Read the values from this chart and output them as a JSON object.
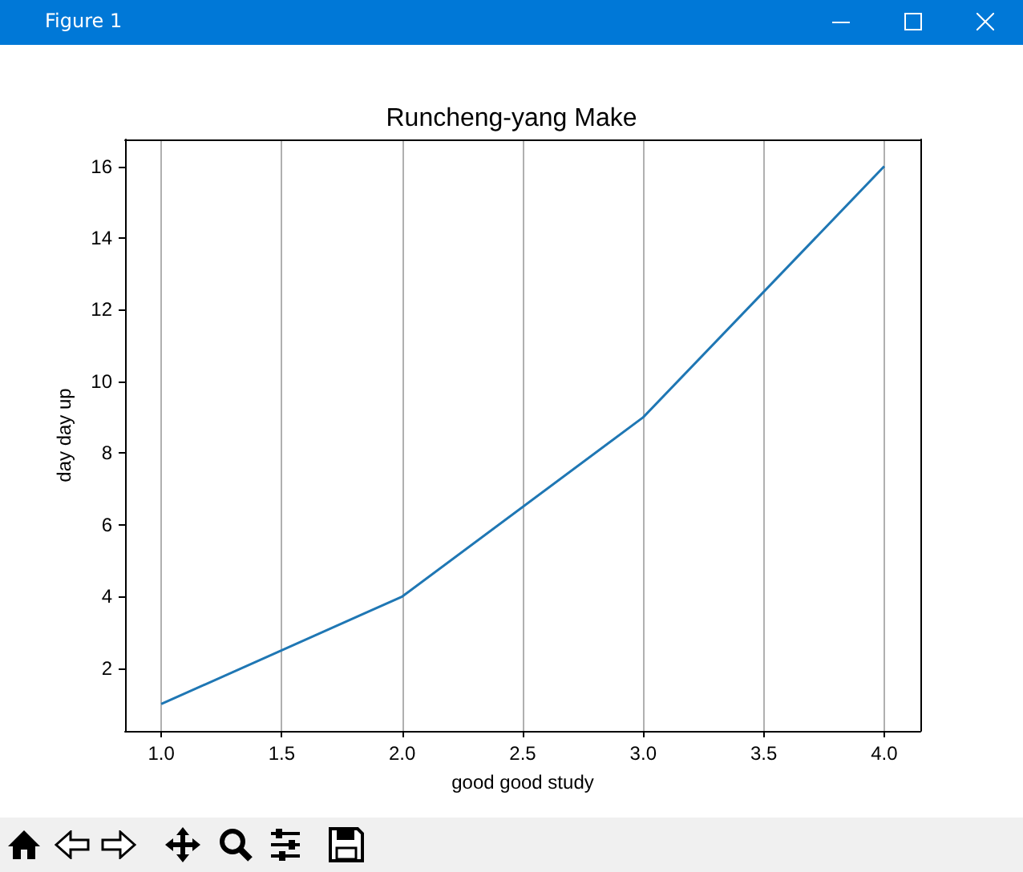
{
  "chart_data": {
    "type": "line",
    "title": "Runcheng-yang Make",
    "xlabel": "good good study",
    "ylabel": "day day up",
    "annotations": [
      "Figure 1"
    ],
    "x": [
      1,
      2,
      3,
      4
    ],
    "series": [
      {
        "color": "#1f77b4",
        "values": [
          1,
          4,
          9,
          16
        ]
      }
    ],
    "xlim": [
      0.85,
      4.15
    ],
    "xticks": [
      {
        "value": 1,
        "label": "1.0"
      },
      {
        "value": 1.5,
        "label": "1.5"
      },
      {
        "value": 2,
        "label": "2.0"
      },
      {
        "value": 2.5,
        "label": "2.5"
      },
      {
        "value": 3,
        "label": "3.0"
      },
      {
        "value": 3.5,
        "label": "3.5"
      },
      {
        "value": 4,
        "label": "4.0"
      }
    ],
    "ylim": [
      0.25,
      16.75
    ],
    "yticks": [
      2,
      4,
      6,
      8,
      10,
      12,
      14,
      16
    ],
    "grid": "x"
  }
}
